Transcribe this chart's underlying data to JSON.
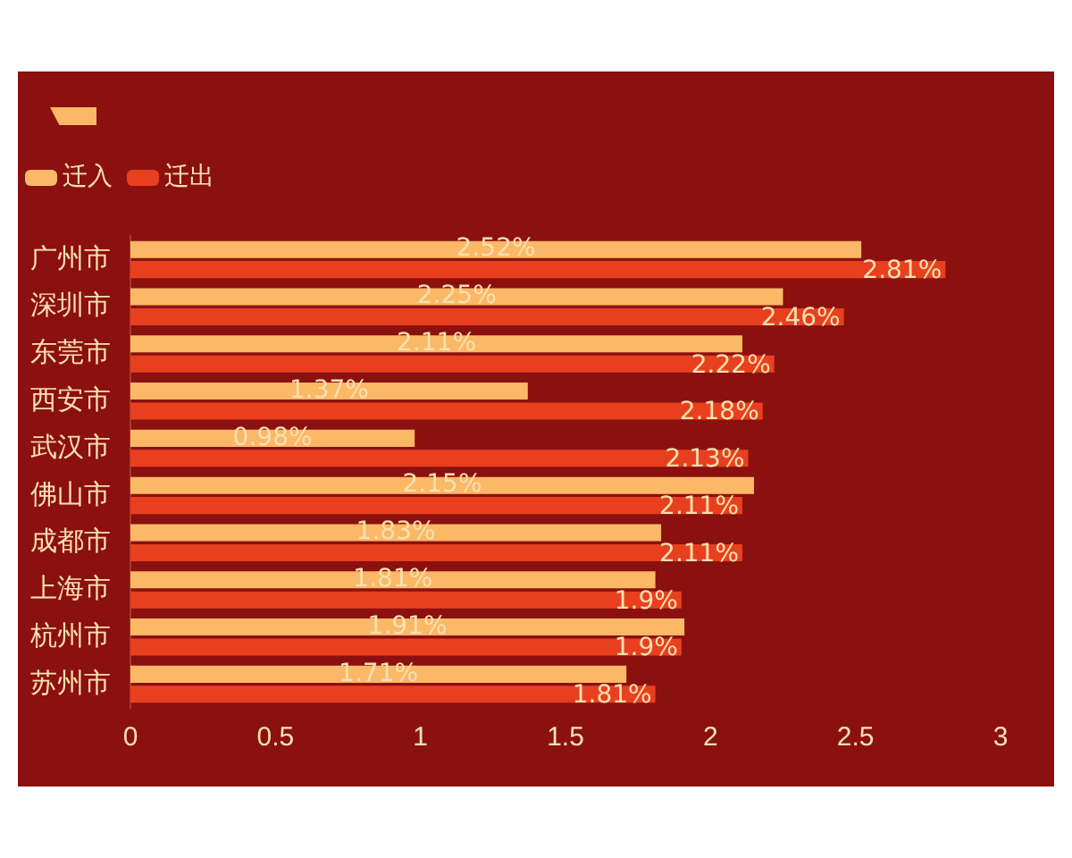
{
  "chart_data": {
    "type": "bar",
    "orientation": "horizontal",
    "categories": [
      "广州市",
      "深圳市",
      "东莞市",
      "西安市",
      "武汉市",
      "佛山市",
      "成都市",
      "上海市",
      "杭州市",
      "苏州市"
    ],
    "series": [
      {
        "name": "迁入",
        "color": "#fbb866",
        "values": [
          2.52,
          2.25,
          2.11,
          1.37,
          0.98,
          2.15,
          1.83,
          1.81,
          1.91,
          1.71
        ],
        "value_labels": [
          "2.52%",
          "2.25%",
          "2.11%",
          "1.37%",
          "0.98%",
          "2.15%",
          "1.83%",
          "1.81%",
          "1.91%",
          "1.71%"
        ]
      },
      {
        "name": "迁出",
        "color": "#e8401f",
        "values": [
          2.81,
          2.46,
          2.22,
          2.18,
          2.13,
          2.11,
          2.11,
          1.9,
          1.9,
          1.81
        ],
        "value_labels": [
          "2.81%",
          "2.46%",
          "2.22%",
          "2.18%",
          "2.13%",
          "2.11%",
          "2.11%",
          "1.9%",
          "1.9%",
          "1.81%"
        ]
      }
    ],
    "xlim": [
      0,
      3
    ],
    "xticks": [
      0,
      0.5,
      1,
      1.5,
      2,
      2.5,
      3
    ],
    "grid": false,
    "legend": "top left"
  }
}
